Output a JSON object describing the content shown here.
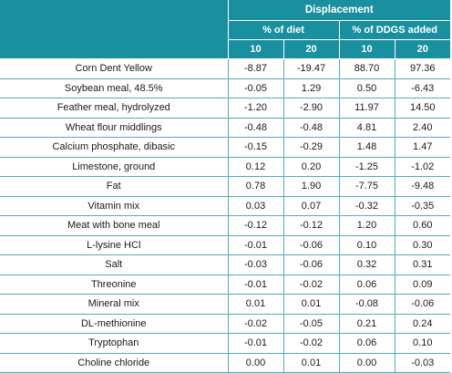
{
  "header": {
    "group": "Displacement",
    "pct_diet": "% of diet",
    "pct_ddgs": "% of DDGS added",
    "levels": [
      "10",
      "20",
      "10",
      "20"
    ]
  },
  "rows": [
    {
      "name": "Corn Dent Yellow",
      "values": [
        "-8.87",
        "-19.47",
        "88.70",
        "97.36"
      ]
    },
    {
      "name": "Soybean meal, 48.5%",
      "values": [
        "-0.05",
        "1.29",
        "0.50",
        "-6.43"
      ]
    },
    {
      "name": "Feather meal, hydrolyzed",
      "values": [
        "-1.20",
        "-2.90",
        "11.97",
        "14.50"
      ]
    },
    {
      "name": "Wheat flour middlings",
      "values": [
        "-0.48",
        "-0.48",
        "4.81",
        "2.40"
      ]
    },
    {
      "name": "Calcium phosphate, dibasic",
      "values": [
        "-0.15",
        "-0.29",
        "1.48",
        "1.47"
      ]
    },
    {
      "name": "Limestone, ground",
      "values": [
        "0.12",
        "0.20",
        "-1.25",
        "-1.02"
      ]
    },
    {
      "name": "Fat",
      "values": [
        "0.78",
        "1.90",
        "-7.75",
        "-9.48"
      ]
    },
    {
      "name": "Vitamin mix",
      "values": [
        "0.03",
        "0.07",
        "-0.32",
        "-0.35"
      ]
    },
    {
      "name": "Meat with bone meal",
      "values": [
        "-0.12",
        "-0.12",
        "1.20",
        "0.60"
      ]
    },
    {
      "name": "L-lysine HCl",
      "values": [
        "-0.01",
        "-0.06",
        "0.10",
        "0.30"
      ]
    },
    {
      "name": "Salt",
      "values": [
        "-0.03",
        "-0.06",
        "0.32",
        "0.31"
      ]
    },
    {
      "name": "Threonine",
      "values": [
        "-0.01",
        "-0.02",
        "0.06",
        "0.09"
      ]
    },
    {
      "name": "Mineral mix",
      "values": [
        "0.01",
        "0.01",
        "-0.08",
        "-0.06"
      ]
    },
    {
      "name": "DL-methionine",
      "values": [
        "-0.02",
        "-0.05",
        "0.21",
        "0.24"
      ]
    },
    {
      "name": "Tryptophan",
      "values": [
        "-0.01",
        "-0.02",
        "0.06",
        "0.10"
      ]
    },
    {
      "name": "Choline chloride",
      "values": [
        "0.00",
        "0.01",
        "0.00",
        "-0.03"
      ]
    }
  ],
  "colors": {
    "header_bg": "#1a8fa0",
    "header_text": "#ffffff",
    "rule": "#5aaab5"
  }
}
